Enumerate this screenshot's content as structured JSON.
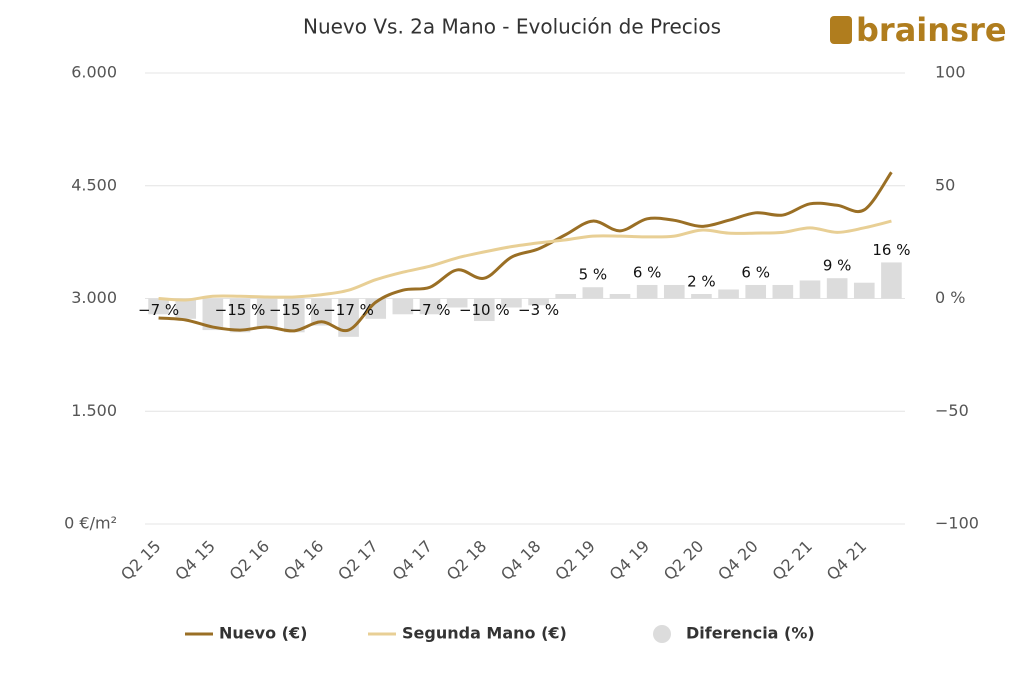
{
  "chart_data": {
    "type": "line",
    "title": "Nuevo Vs. 2a Mano - Evolución de Precios",
    "logo": "brainsre",
    "categories": [
      "Q2 15",
      null,
      "Q4 15",
      null,
      "Q2 16",
      null,
      "Q4 16",
      null,
      "Q2 17",
      null,
      "Q4 17",
      null,
      "Q2 18",
      null,
      "Q4 18",
      null,
      "Q2 19",
      null,
      "Q4 19",
      null,
      "Q2 20",
      null,
      "Q4 20",
      null,
      "Q2 21",
      null,
      "Q4 21",
      null
    ],
    "ylim": [
      0,
      6000
    ],
    "yticks": [
      {
        "value": 0,
        "label": "0 €/m²"
      },
      {
        "value": 1500,
        "label": "1.500"
      },
      {
        "value": 3000,
        "label": "3.000"
      },
      {
        "value": 4500,
        "label": "4.500"
      },
      {
        "value": 6000,
        "label": "6.000"
      }
    ],
    "y2lim": [
      -100,
      100
    ],
    "y2ticks": [
      {
        "value": -100,
        "label": "−100"
      },
      {
        "value": -50,
        "label": "−50"
      },
      {
        "value": 0,
        "label": "0 %"
      },
      50,
      100
    ],
    "grid": true,
    "legend": "bottom",
    "series": [
      {
        "name": "Nuevo (€)",
        "type": "line",
        "axis": "y",
        "color": "#9a6f25",
        "values": [
          2740,
          2714,
          2620,
          2580,
          2620,
          2570,
          2690,
          2580,
          2950,
          3110,
          3150,
          3380,
          3270,
          3550,
          3660,
          3850,
          4030,
          3900,
          4060,
          4040,
          3960,
          4040,
          4140,
          4110,
          4260,
          4240,
          4180,
          4680
        ]
      },
      {
        "name": "Segunda Mano (€)",
        "type": "line",
        "axis": "y",
        "color": "#e8cf95",
        "values": [
          3000,
          2980,
          3030,
          3030,
          3020,
          3020,
          3050,
          3110,
          3250,
          3350,
          3430,
          3540,
          3620,
          3690,
          3740,
          3780,
          3830,
          3830,
          3820,
          3830,
          3910,
          3870,
          3870,
          3880,
          3940,
          3880,
          3940,
          4030
        ]
      },
      {
        "name": "Diferencia (%)",
        "type": "bar",
        "axis": "y2",
        "color": "#dcdcdc",
        "values": [
          -7,
          -9,
          -14,
          -15,
          -13,
          -15,
          -12,
          -17,
          -9,
          -7,
          -7,
          -4,
          -10,
          -4,
          -3,
          2,
          5,
          2,
          6,
          6,
          2,
          4,
          6,
          6,
          8,
          9,
          7,
          16
        ],
        "value_labels": [
          "−7 %",
          null,
          null,
          "−15 %",
          null,
          "−15 %",
          null,
          "−17 %",
          null,
          null,
          "−7 %",
          null,
          "−10 %",
          null,
          "−3 %",
          null,
          "5 %",
          null,
          "6 %",
          null,
          "2 %",
          null,
          "6 %",
          null,
          null,
          "9 %",
          null,
          "16 %"
        ]
      }
    ]
  }
}
